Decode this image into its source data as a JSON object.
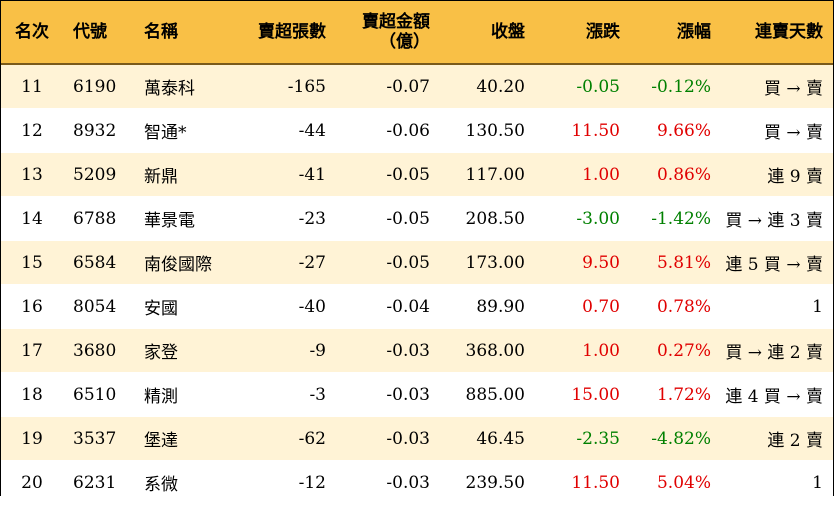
{
  "headers": {
    "rank": "名次",
    "code": "代號",
    "name": "名稱",
    "sell_volume": "賣超張數",
    "sell_amount_line1": "賣超金額",
    "sell_amount_line2": "（億）",
    "close": "收盤",
    "change": "漲跌",
    "change_pct": "漲幅",
    "consecutive_days": "連賣天數"
  },
  "colors": {
    "header_bg": "#f9c046",
    "odd_row_bg": "#fff3d6",
    "even_row_bg": "#ffffff",
    "up": "#e00000",
    "down": "#008000"
  },
  "rows": [
    {
      "rank": "11",
      "code": "6190",
      "name": "萬泰科",
      "sell_volume": "-165",
      "sell_amount": "-0.07",
      "close": "40.20",
      "change": "-0.05",
      "change_pct": "-0.12%",
      "trend": "down",
      "consecutive": "買 → 賣"
    },
    {
      "rank": "12",
      "code": "8932",
      "name": "智通*",
      "sell_volume": "-44",
      "sell_amount": "-0.06",
      "close": "130.50",
      "change": "11.50",
      "change_pct": "9.66%",
      "trend": "up",
      "consecutive": "買 → 賣"
    },
    {
      "rank": "13",
      "code": "5209",
      "name": "新鼎",
      "sell_volume": "-41",
      "sell_amount": "-0.05",
      "close": "117.00",
      "change": "1.00",
      "change_pct": "0.86%",
      "trend": "up",
      "consecutive": "連 9 賣"
    },
    {
      "rank": "14",
      "code": "6788",
      "name": "華景電",
      "sell_volume": "-23",
      "sell_amount": "-0.05",
      "close": "208.50",
      "change": "-3.00",
      "change_pct": "-1.42%",
      "trend": "down",
      "consecutive": "買 → 連 3 賣"
    },
    {
      "rank": "15",
      "code": "6584",
      "name": "南俊國際",
      "sell_volume": "-27",
      "sell_amount": "-0.05",
      "close": "173.00",
      "change": "9.50",
      "change_pct": "5.81%",
      "trend": "up",
      "consecutive": "連 5 買 → 賣"
    },
    {
      "rank": "16",
      "code": "8054",
      "name": "安國",
      "sell_volume": "-40",
      "sell_amount": "-0.04",
      "close": "89.90",
      "change": "0.70",
      "change_pct": "0.78%",
      "trend": "up",
      "consecutive": "1"
    },
    {
      "rank": "17",
      "code": "3680",
      "name": "家登",
      "sell_volume": "-9",
      "sell_amount": "-0.03",
      "close": "368.00",
      "change": "1.00",
      "change_pct": "0.27%",
      "trend": "up",
      "consecutive": "買 → 連 2 賣"
    },
    {
      "rank": "18",
      "code": "6510",
      "name": "精測",
      "sell_volume": "-3",
      "sell_amount": "-0.03",
      "close": "885.00",
      "change": "15.00",
      "change_pct": "1.72%",
      "trend": "up",
      "consecutive": "連 4 買 → 賣"
    },
    {
      "rank": "19",
      "code": "3537",
      "name": "堡達",
      "sell_volume": "-62",
      "sell_amount": "-0.03",
      "close": "46.45",
      "change": "-2.35",
      "change_pct": "-4.82%",
      "trend": "down",
      "consecutive": "連 2 賣"
    },
    {
      "rank": "20",
      "code": "6231",
      "name": "系微",
      "sell_volume": "-12",
      "sell_amount": "-0.03",
      "close": "239.50",
      "change": "11.50",
      "change_pct": "5.04%",
      "trend": "up",
      "consecutive": "1"
    }
  ]
}
